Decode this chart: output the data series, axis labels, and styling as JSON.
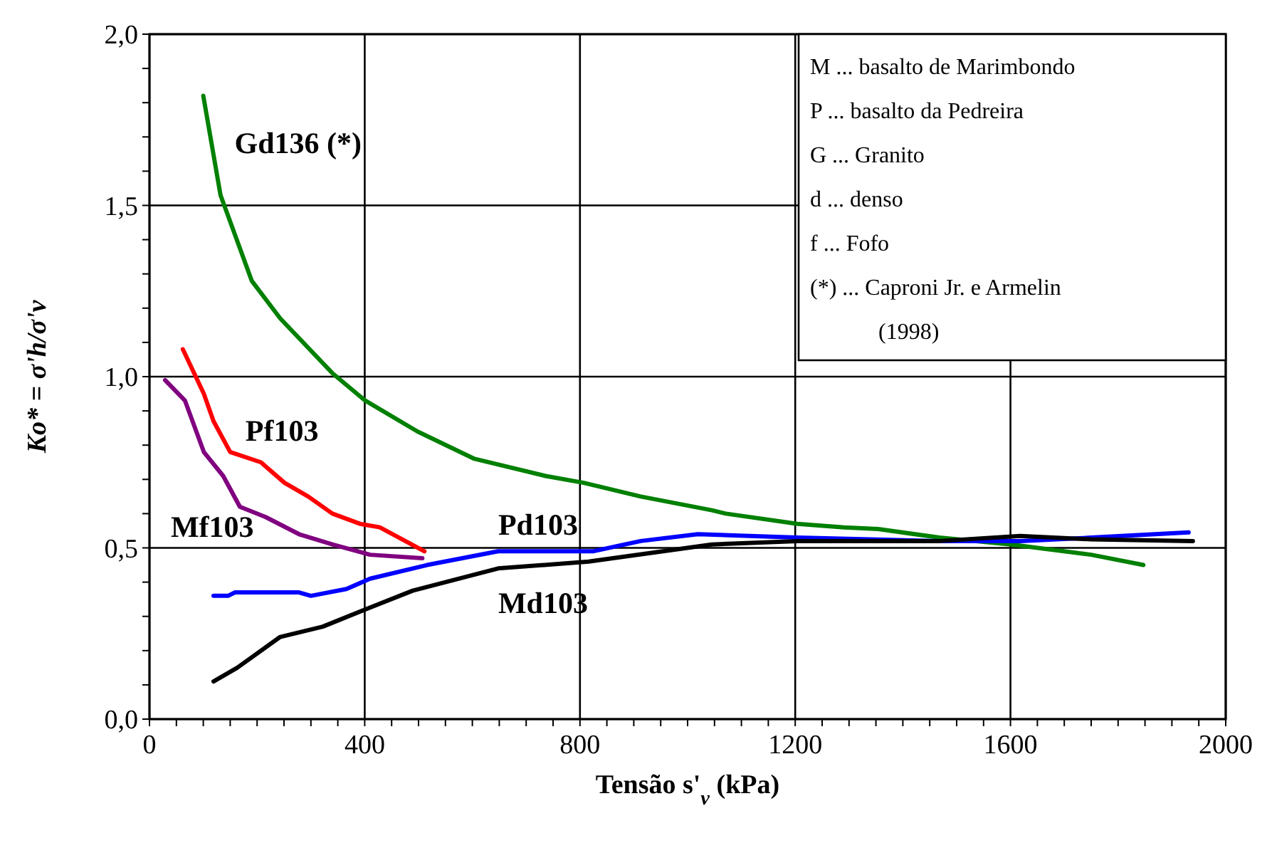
{
  "chart_data": {
    "type": "line",
    "xlabel": "Tensão  s'$_{v}$  (kPa)",
    "ylabel": "Ko* = σ'h/σ'v",
    "xlim": [
      0,
      2000
    ],
    "ylim": [
      0,
      2
    ],
    "xticks": [
      0,
      {
        "value": 50,
        "label": null
      },
      {
        "value": 100,
        "label": null
      },
      {
        "value": 150,
        "label": null
      },
      {
        "value": 200,
        "label": null
      },
      {
        "value": 250,
        "label": null
      },
      {
        "value": 300,
        "label": null
      },
      {
        "value": 350,
        "label": null
      },
      400,
      {
        "value": 450,
        "label": null
      },
      {
        "value": 500,
        "label": null
      },
      {
        "value": 550,
        "label": null
      },
      {
        "value": 600,
        "label": null
      },
      {
        "value": 650,
        "label": null
      },
      {
        "value": 700,
        "label": null
      },
      {
        "value": 750,
        "label": null
      },
      800,
      {
        "value": 850,
        "label": null
      },
      {
        "value": 900,
        "label": null
      },
      {
        "value": 950,
        "label": null
      },
      {
        "value": 1000,
        "label": null
      },
      {
        "value": 1050,
        "label": null
      },
      {
        "value": 1100,
        "label": null
      },
      {
        "value": 1150,
        "label": null
      },
      1200,
      {
        "value": 1250,
        "label": null
      },
      {
        "value": 1300,
        "label": null
      },
      {
        "value": 1350,
        "label": null
      },
      {
        "value": 1400,
        "label": null
      },
      {
        "value": 1450,
        "label": null
      },
      {
        "value": 1500,
        "label": null
      },
      {
        "value": 1550,
        "label": null
      },
      1600,
      {
        "value": 1650,
        "label": null
      },
      {
        "value": 1700,
        "label": null
      },
      {
        "value": 1750,
        "label": null
      },
      {
        "value": 1800,
        "label": null
      },
      {
        "value": 1850,
        "label": null
      },
      {
        "value": 1900,
        "label": null
      },
      {
        "value": 1950,
        "label": null
      },
      2000
    ],
    "yticks": [
      {
        "value": 0,
        "label": "0,0"
      },
      {
        "value": 0.1,
        "label": null
      },
      {
        "value": 0.2,
        "label": null
      },
      {
        "value": 0.3,
        "label": null
      },
      {
        "value": 0.4,
        "label": null
      },
      {
        "value": 0.5,
        "label": "0,5"
      },
      {
        "value": 0.6,
        "label": null
      },
      {
        "value": 0.7,
        "label": null
      },
      {
        "value": 0.8,
        "label": null
      },
      {
        "value": 0.9,
        "label": null
      },
      {
        "value": 1,
        "label": "1,0"
      },
      {
        "value": 1.1,
        "label": null
      },
      {
        "value": 1.2,
        "label": null
      },
      {
        "value": 1.3,
        "label": null
      },
      {
        "value": 1.4,
        "label": null
      },
      {
        "value": 1.5,
        "label": "1,5"
      },
      {
        "value": 1.6,
        "label": null
      },
      {
        "value": 1.7,
        "label": null
      },
      {
        "value": 1.8,
        "label": null
      },
      {
        "value": 1.9,
        "label": null
      },
      {
        "value": 2,
        "label": "2,0"
      }
    ],
    "grid": true,
    "marker": "none",
    "line_style": "solid",
    "annotations": [
      "M ... basalto de Marimbondo",
      "P ... basalto da Pedreira",
      "G ... Granito",
      "d ... denso",
      "f ... Fofo",
      "(*) ... Caproni Jr. e Armelin",
      "(1998)"
    ],
    "series": [
      {
        "name": "Gd136 (*)",
        "color": "#008000",
        "x": [
          100,
          132,
          190,
          243,
          340,
          401,
          498,
          604,
          736,
          807,
          913,
          1045,
          1071,
          1204,
          1291,
          1354,
          1468,
          1601,
          1750,
          1847
        ],
        "values": [
          1.82,
          1.53,
          1.28,
          1.17,
          1.01,
          0.93,
          0.84,
          0.76,
          0.71,
          0.69,
          0.65,
          0.61,
          0.6,
          0.57,
          0.56,
          0.555,
          0.53,
          0.51,
          0.48,
          0.45
        ]
      },
      {
        "name": "Pf103",
        "color": "#ff0000",
        "x": [
          62,
          101,
          119,
          150,
          207,
          251,
          295,
          340,
          392,
          428,
          511
        ],
        "values": [
          1.08,
          0.95,
          0.87,
          0.78,
          0.75,
          0.69,
          0.65,
          0.6,
          0.57,
          0.56,
          0.49
        ]
      },
      {
        "name": "Mf103",
        "color": "#800080",
        "x": [
          29,
          66,
          101,
          137,
          168,
          216,
          278,
          340,
          410,
          507
        ],
        "values": [
          0.99,
          0.93,
          0.78,
          0.71,
          0.62,
          0.59,
          0.54,
          0.51,
          0.48,
          0.47
        ]
      },
      {
        "name": "Pd103",
        "color": "#0000ff",
        "x": [
          119,
          146,
          159,
          278,
          300,
          366,
          410,
          516,
          648,
          780,
          824,
          913,
          1019,
          1204,
          1468,
          1618,
          1750,
          1931
        ],
        "values": [
          0.36,
          0.36,
          0.37,
          0.37,
          0.36,
          0.38,
          0.41,
          0.45,
          0.49,
          0.49,
          0.49,
          0.52,
          0.54,
          0.53,
          0.52,
          0.52,
          0.53,
          0.545
        ]
      },
      {
        "name": "Md103",
        "color": "#000000",
        "x": [
          119,
          163,
          243,
          322,
          401,
          489,
          648,
          816,
          1045,
          1204,
          1468,
          1618,
          1750,
          1939
        ],
        "values": [
          0.11,
          0.15,
          0.24,
          0.27,
          0.32,
          0.375,
          0.44,
          0.46,
          0.51,
          0.52,
          0.52,
          0.535,
          0.525,
          0.52
        ]
      }
    ]
  }
}
